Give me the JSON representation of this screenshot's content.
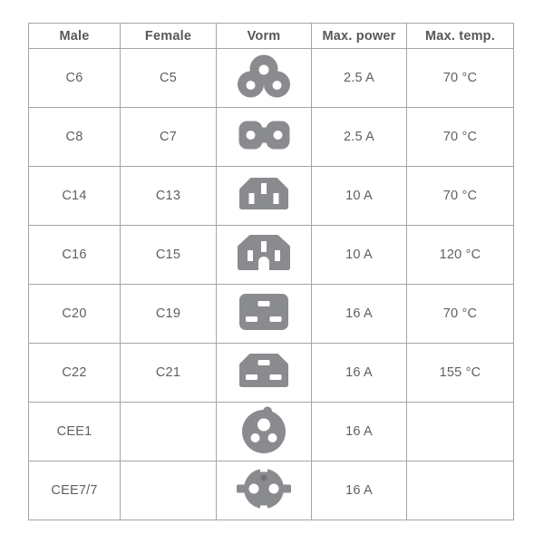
{
  "colors": {
    "background": "#ffffff",
    "border": "#a5a5a5",
    "header_text": "#57575a",
    "cell_text": "#5f6063",
    "icon_gray": "#8a8b8e",
    "icon_dark_gray": "#737477"
  },
  "table": {
    "headers": [
      "Male",
      "Female",
      "Vorm",
      "Max. power",
      "Max. temp."
    ],
    "rows": [
      {
        "male": "C6",
        "female": "C5",
        "icon": "c5-cloverleaf-connector-icon",
        "power": "2.5 A",
        "temp": "70 °C"
      },
      {
        "male": "C8",
        "female": "C7",
        "icon": "c7-figure8-connector-icon",
        "power": "2.5 A",
        "temp": "70 °C"
      },
      {
        "male": "C14",
        "female": "C13",
        "icon": "c13-connector-icon",
        "power": "10 A",
        "temp": "70 °C"
      },
      {
        "male": "C16",
        "female": "C15",
        "icon": "c15-connector-icon",
        "power": "10 A",
        "temp": "120 °C"
      },
      {
        "male": "C20",
        "female": "C19",
        "icon": "c19-connector-icon",
        "power": "16 A",
        "temp": "70 °C"
      },
      {
        "male": "C22",
        "female": "C21",
        "icon": "c21-connector-icon",
        "power": "16 A",
        "temp": "155 °C"
      },
      {
        "male": "CEE1",
        "female": "",
        "icon": "cee1-connector-icon",
        "power": "16 A",
        "temp": ""
      },
      {
        "male": "CEE7/7",
        "female": "",
        "icon": "cee7-7-schuko-connector-icon",
        "power": "16 A",
        "temp": ""
      }
    ]
  }
}
